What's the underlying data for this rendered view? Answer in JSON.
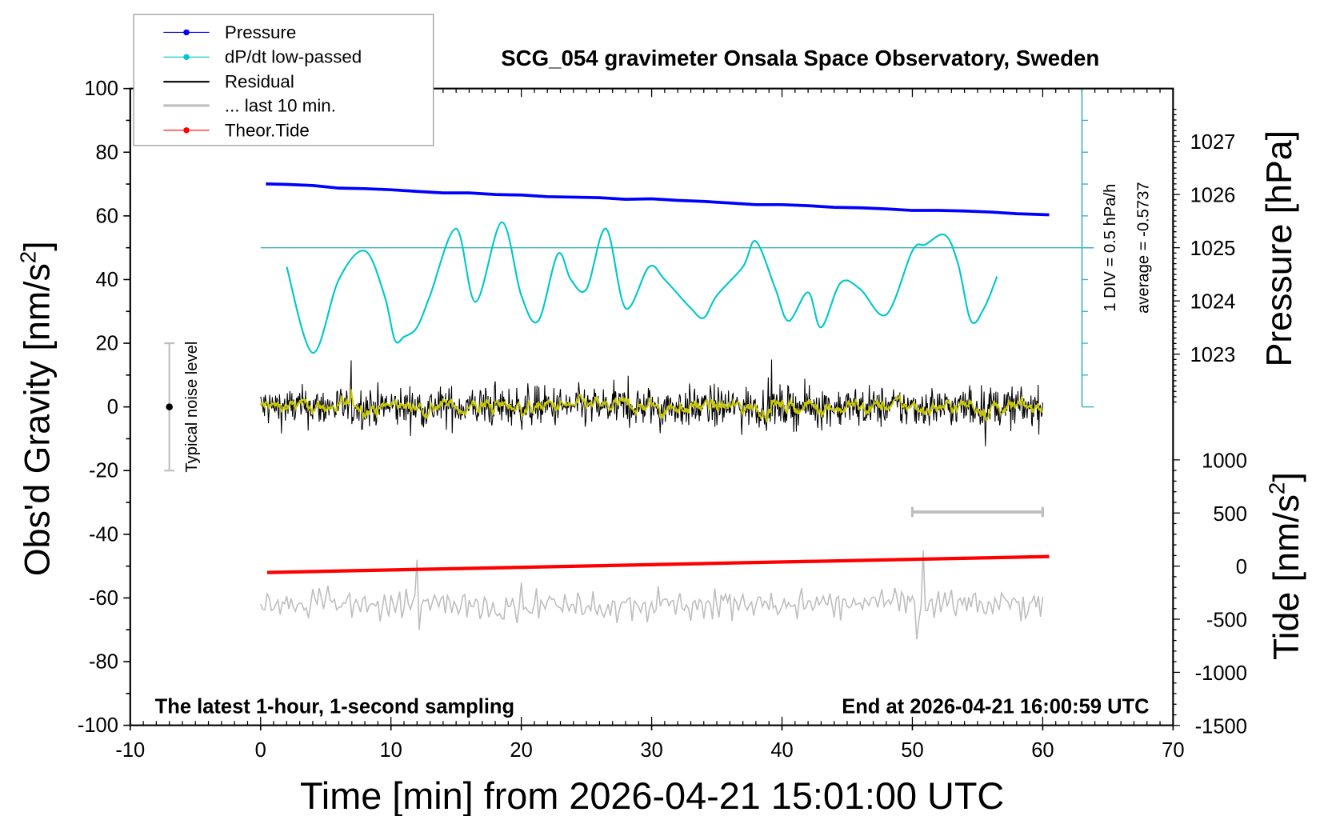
{
  "chart_data": {
    "type": "line",
    "title": "SCG_054 gravimeter Onsala Space Observatory, Sweden",
    "xlabel": "Time [min] from 2026-04-21 15:01:00 UTC",
    "ylabel": "Obs'd Gravity [nm/s",
    "ylabel_sup": "2",
    "ylabel_end": "]",
    "y2label": "Pressure [hPa]",
    "y3label": "Tide [nm/s",
    "y3label_sup": "2",
    "y3label_end": "]",
    "xlim": [
      -10,
      70
    ],
    "ylim": [
      -100,
      100
    ],
    "pressure_lim_ticks": [
      1023,
      1024,
      1025,
      1026,
      1027
    ],
    "tide_ticks": [
      1000,
      500,
      0,
      -500,
      -1000,
      -1500
    ],
    "xticks": [
      -10,
      0,
      10,
      20,
      30,
      40,
      50,
      60,
      70
    ],
    "yticks": [
      100,
      80,
      60,
      40,
      20,
      0,
      -20,
      -40,
      -60,
      -80,
      -100
    ],
    "legend": {
      "position": "top-left",
      "entries": [
        "Pressure",
        "dP/dt low-passed",
        "Residual",
        "... last 10 min.",
        "Theor.Tide"
      ]
    },
    "annotations": {
      "bottom_left": "The latest 1-hour, 1-second sampling",
      "bottom_right": "End at 2026-04-21 16:00:59 UTC",
      "noise": "Typical noise level",
      "div": "1 DIV = 0.5 hPa/h",
      "average": "average = -0.5737"
    },
    "series": [
      {
        "name": "Pressure",
        "unit": "hPa",
        "color": "#0000ff",
        "x": [
          0.4,
          2,
          4,
          6,
          8,
          10,
          12,
          14,
          16,
          18,
          20,
          22,
          24,
          26,
          28,
          30,
          32,
          34,
          36,
          38,
          40,
          42,
          44,
          46,
          48,
          50,
          52,
          54,
          56,
          58,
          60.5
        ],
        "values": [
          1026.2,
          1026.19,
          1026.17,
          1026.12,
          1026.11,
          1026.09,
          1026.06,
          1026.03,
          1026.03,
          1026.0,
          1025.99,
          1025.96,
          1025.95,
          1025.94,
          1025.91,
          1025.92,
          1025.89,
          1025.87,
          1025.84,
          1025.81,
          1025.81,
          1025.79,
          1025.76,
          1025.75,
          1025.73,
          1025.7,
          1025.7,
          1025.69,
          1025.67,
          1025.64,
          1025.62
        ]
      },
      {
        "name": "dP/dt low-passed",
        "unit": "hPa/h",
        "color": "#00c8c8",
        "x": [
          2,
          4,
          6,
          8,
          9.5,
          10.3,
          11,
          12,
          13,
          15,
          16.5,
          18.5,
          20,
          21.3,
          22.8,
          23.8,
          25,
          26.5,
          28,
          29.8,
          31,
          33,
          34,
          35,
          37,
          38,
          39.5,
          40.5,
          42,
          43,
          44.5,
          46,
          48,
          50,
          51,
          52.5,
          53.5,
          54.5,
          55.5,
          56.5
        ],
        "values": [
          -0.3,
          -1.65,
          -0.5,
          -0.05,
          -0.75,
          -1.45,
          -1.4,
          -1.25,
          -0.75,
          0.3,
          -0.85,
          0.4,
          -0.75,
          -1.15,
          -0.1,
          -0.5,
          -0.65,
          0.3,
          -0.95,
          -0.3,
          -0.5,
          -0.95,
          -1.1,
          -0.75,
          -0.3,
          0.1,
          -0.65,
          -1.15,
          -0.7,
          -1.25,
          -0.55,
          -0.65,
          -1.05,
          -0.05,
          0.05,
          0.2,
          -0.25,
          -1.15,
          -0.95,
          -0.45
        ]
      },
      {
        "name": "Residual",
        "unit": "nm/s2",
        "color": "#000000",
        "x_range": [
          0,
          60
        ],
        "approx_range": [
          -12,
          17
        ]
      },
      {
        "name": "Residual smoothed",
        "unit": "nm/s2",
        "color": "#c8c800",
        "x_range": [
          0,
          60
        ],
        "approx_range": [
          -3,
          3
        ]
      },
      {
        "name": "... last 10 min.",
        "unit": "nm/s2",
        "color": "#bebebe",
        "x_range": [
          0,
          60
        ],
        "baseline": -62,
        "approx_range": [
          -73,
          -48
        ],
        "bracket_x": [
          50,
          60
        ]
      },
      {
        "name": "Theor.Tide",
        "unit": "nm/s2",
        "color": "#ff0000",
        "x": [
          0.5,
          60.5
        ],
        "values": [
          -60,
          90
        ]
      }
    ],
    "noise_bar": {
      "x": -7,
      "center": 0,
      "range": [
        -20,
        20
      ]
    },
    "dpdt_zero_level": 50,
    "dpdt_div": 0.5
  }
}
